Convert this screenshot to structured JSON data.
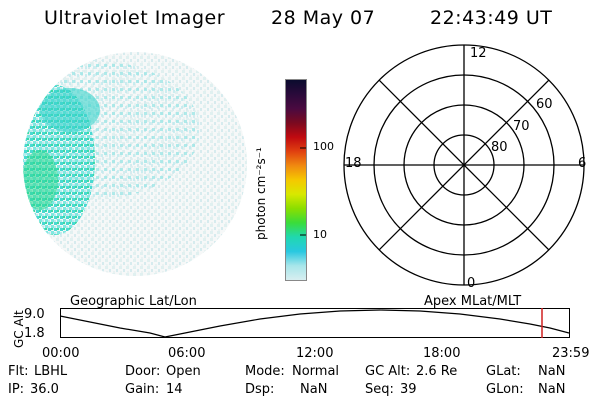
{
  "header": {
    "title": "Ultraviolet Imager",
    "date": "28 May 07",
    "time": "22:43:49 UT"
  },
  "colorbar": {
    "label": "photon cm⁻²s⁻¹",
    "ticks": [
      "100",
      "10"
    ],
    "colors": [
      "#0b0b2e",
      "#2a0a3a",
      "#4a0a40",
      "#7a0a20",
      "#c00a10",
      "#e04010",
      "#f08a10",
      "#f5c800",
      "#d8e800",
      "#8ade00",
      "#3adc3a",
      "#20d8b0",
      "#28c8e0",
      "#a8e6ea",
      "#d8eef0"
    ]
  },
  "polar_plot": {
    "mlt_labels": {
      "top": "12",
      "left": "18",
      "right": "6",
      "bottom": "0"
    },
    "lat_labels": [
      "60",
      "70",
      "80"
    ]
  },
  "timeline": {
    "left_title": "Geographic Lat/Lon",
    "right_title": "Apex MLat/MLT",
    "axis_label": "GC Alt",
    "y_ticks": [
      "9.0",
      "1.8"
    ],
    "x_ticks": [
      "00:00",
      "06:00",
      "12:00",
      "18:00",
      "23:59"
    ],
    "marker_color": "#d02020"
  },
  "info": {
    "flt_label": "Flt:",
    "flt_value": "LBHL",
    "door_label": "Door:",
    "door_value": "Open",
    "mode_label": "Mode:",
    "mode_value": "Normal",
    "gcalt_label": "GC Alt:",
    "gcalt_value": "2.6 Re",
    "glat_label": "GLat:",
    "glat_value": "NaN",
    "ip_label": "IP:",
    "ip_value": "36.0",
    "gain_label": "Gain:",
    "gain_value": "14",
    "dsp_label": "Dsp:",
    "dsp_value": "NaN",
    "seq_label": "Seq:",
    "seq_value": "39",
    "glon_label": "GLon:",
    "glon_value": "NaN"
  }
}
